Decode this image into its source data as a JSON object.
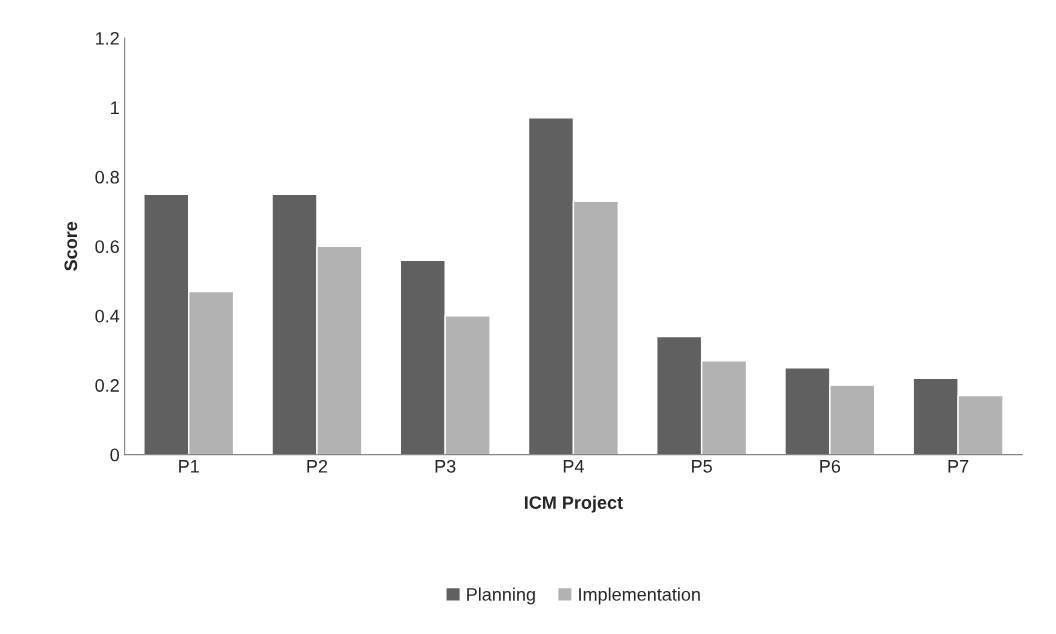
{
  "chart_data": {
    "type": "bar",
    "xlabel": "ICM Project",
    "ylabel": "Score",
    "categories": [
      "P1",
      "P2",
      "P3",
      "P4",
      "P5",
      "P6",
      "P7"
    ],
    "series": [
      {
        "name": "Planning",
        "color": "#606060",
        "values": [
          0.75,
          0.75,
          0.56,
          0.97,
          0.34,
          0.25,
          0.22
        ]
      },
      {
        "name": "Implementation",
        "color": "#b2b2b2",
        "values": [
          0.47,
          0.6,
          0.4,
          0.73,
          0.27,
          0.2,
          0.17
        ]
      }
    ],
    "ylim": [
      0,
      1.2
    ],
    "yticks": [
      0,
      0.2,
      0.4,
      0.6,
      0.8,
      1,
      1.2
    ],
    "grid": false,
    "legend": "bottom"
  }
}
